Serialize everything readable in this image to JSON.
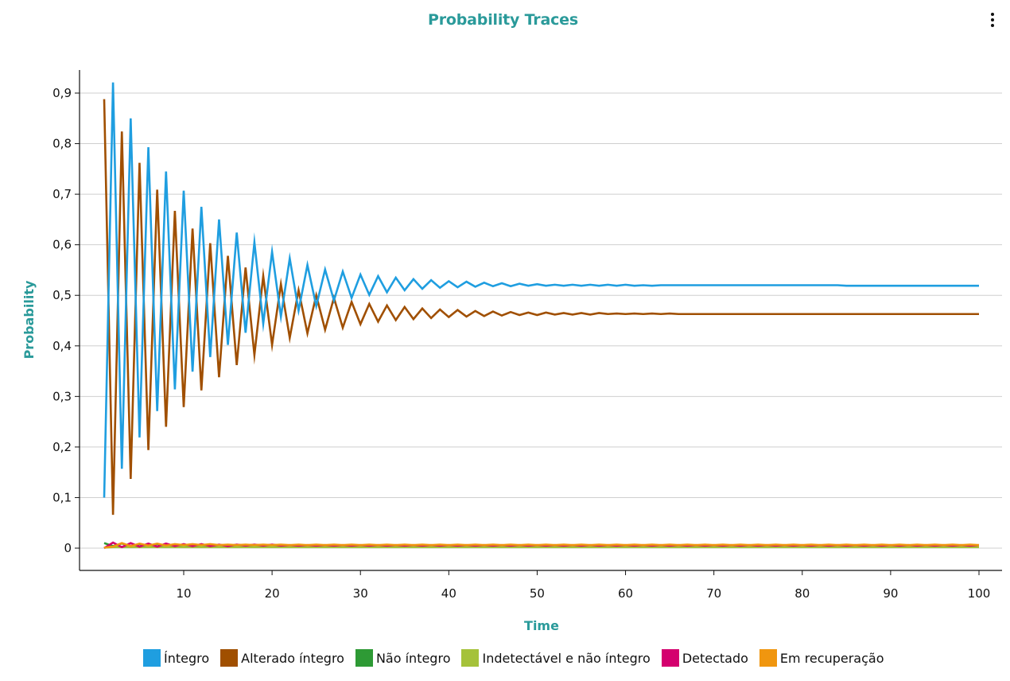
{
  "menu_icon": "more-vertical-icon",
  "accent_color": "#2a9a9a",
  "chart_data": {
    "type": "line",
    "title": "Probability Traces",
    "xlabel": "Time",
    "ylabel": "Probability",
    "xlim": [
      1,
      100
    ],
    "ylim": [
      0,
      0.9
    ],
    "xticks": [
      "10",
      "20",
      "30",
      "40",
      "50",
      "60",
      "70",
      "80",
      "90",
      "100"
    ],
    "yticks": [
      "0",
      "0,1",
      "0,2",
      "0,3",
      "0,4",
      "0,5",
      "0,6",
      "0,7",
      "0,8",
      "0,9"
    ],
    "grid": "horizontal",
    "legend_position": "bottom",
    "series": [
      {
        "name": "Íntegro",
        "color": "#1f9ee0",
        "values": [
          0.1,
          0.921,
          0.157,
          0.85,
          0.219,
          0.793,
          0.271,
          0.745,
          0.314,
          0.707,
          0.349,
          0.675,
          0.378,
          0.65,
          0.402,
          0.624,
          0.426,
          0.605,
          0.444,
          0.586,
          0.458,
          0.573,
          0.47,
          0.56,
          0.479,
          0.551,
          0.49,
          0.547,
          0.495,
          0.541,
          0.501,
          0.538,
          0.506,
          0.535,
          0.51,
          0.532,
          0.513,
          0.53,
          0.515,
          0.528,
          0.516,
          0.527,
          0.517,
          0.525,
          0.518,
          0.524,
          0.518,
          0.523,
          0.519,
          0.522,
          0.519,
          0.521,
          0.519,
          0.521,
          0.519,
          0.521,
          0.519,
          0.521,
          0.519,
          0.521,
          0.519,
          0.52,
          0.519,
          0.52,
          0.52,
          0.52,
          0.52,
          0.52,
          0.52,
          0.52,
          0.52,
          0.52,
          0.52,
          0.52,
          0.52,
          0.52,
          0.52,
          0.52,
          0.52,
          0.52,
          0.52,
          0.52,
          0.52,
          0.52,
          0.519,
          0.519,
          0.519,
          0.519,
          0.519,
          0.519,
          0.519,
          0.519,
          0.519,
          0.519,
          0.519,
          0.519,
          0.519,
          0.519,
          0.519,
          0.519
        ]
      },
      {
        "name": "Alterado íntegro",
        "color": "#a04f00",
        "values": [
          0.888,
          0.066,
          0.824,
          0.137,
          0.762,
          0.194,
          0.709,
          0.24,
          0.667,
          0.279,
          0.632,
          0.312,
          0.603,
          0.338,
          0.578,
          0.362,
          0.555,
          0.382,
          0.538,
          0.402,
          0.522,
          0.416,
          0.51,
          0.425,
          0.5,
          0.432,
          0.495,
          0.436,
          0.487,
          0.443,
          0.483,
          0.448,
          0.48,
          0.451,
          0.477,
          0.453,
          0.474,
          0.455,
          0.472,
          0.457,
          0.471,
          0.458,
          0.469,
          0.459,
          0.468,
          0.46,
          0.467,
          0.461,
          0.466,
          0.461,
          0.466,
          0.462,
          0.465,
          0.462,
          0.465,
          0.462,
          0.465,
          0.463,
          0.464,
          0.463,
          0.464,
          0.463,
          0.464,
          0.463,
          0.464,
          0.463,
          0.463,
          0.463,
          0.463,
          0.463,
          0.463,
          0.463,
          0.463,
          0.463,
          0.463,
          0.463,
          0.463,
          0.463,
          0.463,
          0.463,
          0.463,
          0.463,
          0.463,
          0.463,
          0.463,
          0.463,
          0.463,
          0.463,
          0.463,
          0.463,
          0.463,
          0.463,
          0.463,
          0.463,
          0.463,
          0.463,
          0.463,
          0.463,
          0.463,
          0.463
        ]
      },
      {
        "name": "Não íntegro",
        "color": "#2e9a35",
        "values": [
          0.01,
          0.004,
          0.009,
          0.004,
          0.008,
          0.004,
          0.008,
          0.004,
          0.007,
          0.004,
          0.007,
          0.004,
          0.006,
          0.004,
          0.006,
          0.004,
          0.006,
          0.004,
          0.005,
          0.004,
          0.005,
          0.004,
          0.005,
          0.004,
          0.005,
          0.004,
          0.005,
          0.004,
          0.005,
          0.004,
          0.005,
          0.004,
          0.004,
          0.004,
          0.004,
          0.004,
          0.004,
          0.004,
          0.004,
          0.004,
          0.004,
          0.004,
          0.004,
          0.004,
          0.004,
          0.004,
          0.004,
          0.004,
          0.004,
          0.004,
          0.004,
          0.004,
          0.004,
          0.004,
          0.004,
          0.004,
          0.004,
          0.004,
          0.004,
          0.004,
          0.004,
          0.004,
          0.004,
          0.004,
          0.004,
          0.004,
          0.004,
          0.004,
          0.004,
          0.004,
          0.004,
          0.004,
          0.004,
          0.004,
          0.004,
          0.004,
          0.004,
          0.004,
          0.004,
          0.004,
          0.004,
          0.004,
          0.004,
          0.004,
          0.004,
          0.004,
          0.004,
          0.004,
          0.004,
          0.004,
          0.004,
          0.004,
          0.004,
          0.004,
          0.004,
          0.004,
          0.004,
          0.004,
          0.004,
          0.004
        ]
      },
      {
        "name": "Indetectável e não íntegro",
        "color": "#a5c23a",
        "values": [
          0.001,
          0.002,
          0.002,
          0.002,
          0.002,
          0.002,
          0.002,
          0.002,
          0.002,
          0.002,
          0.002,
          0.002,
          0.002,
          0.002,
          0.002,
          0.002,
          0.002,
          0.002,
          0.002,
          0.002,
          0.002,
          0.002,
          0.002,
          0.002,
          0.002,
          0.002,
          0.002,
          0.002,
          0.002,
          0.002,
          0.002,
          0.002,
          0.002,
          0.002,
          0.002,
          0.002,
          0.002,
          0.002,
          0.002,
          0.002,
          0.002,
          0.002,
          0.002,
          0.002,
          0.002,
          0.002,
          0.002,
          0.002,
          0.002,
          0.002,
          0.002,
          0.002,
          0.002,
          0.002,
          0.002,
          0.002,
          0.002,
          0.002,
          0.002,
          0.002,
          0.002,
          0.002,
          0.002,
          0.002,
          0.002,
          0.002,
          0.002,
          0.002,
          0.002,
          0.002,
          0.002,
          0.002,
          0.002,
          0.002,
          0.002,
          0.002,
          0.002,
          0.002,
          0.002,
          0.002,
          0.002,
          0.002,
          0.002,
          0.002,
          0.002,
          0.002,
          0.002,
          0.002,
          0.002,
          0.002,
          0.002,
          0.002,
          0.002,
          0.002,
          0.002,
          0.002,
          0.002,
          0.002,
          0.002,
          0.002
        ]
      },
      {
        "name": "Detectado",
        "color": "#d4006e",
        "values": [
          0.0,
          0.011,
          0.002,
          0.01,
          0.003,
          0.009,
          0.003,
          0.009,
          0.004,
          0.008,
          0.004,
          0.008,
          0.004,
          0.007,
          0.004,
          0.007,
          0.005,
          0.007,
          0.005,
          0.007,
          0.005,
          0.006,
          0.005,
          0.006,
          0.005,
          0.006,
          0.005,
          0.006,
          0.005,
          0.006,
          0.005,
          0.006,
          0.005,
          0.006,
          0.005,
          0.006,
          0.005,
          0.006,
          0.005,
          0.006,
          0.005,
          0.006,
          0.005,
          0.006,
          0.005,
          0.006,
          0.005,
          0.006,
          0.005,
          0.006,
          0.005,
          0.006,
          0.005,
          0.006,
          0.005,
          0.006,
          0.005,
          0.006,
          0.005,
          0.006,
          0.005,
          0.006,
          0.005,
          0.006,
          0.005,
          0.006,
          0.005,
          0.006,
          0.005,
          0.006,
          0.005,
          0.006,
          0.005,
          0.006,
          0.005,
          0.006,
          0.005,
          0.006,
          0.005,
          0.006,
          0.005,
          0.006,
          0.005,
          0.006,
          0.005,
          0.006,
          0.005,
          0.006,
          0.005,
          0.006,
          0.005,
          0.006,
          0.005,
          0.006,
          0.005,
          0.006,
          0.005,
          0.006,
          0.005,
          0.006
        ]
      },
      {
        "name": "Em recuperação",
        "color": "#f0960f",
        "values": [
          0.001,
          0.003,
          0.01,
          0.004,
          0.009,
          0.005,
          0.009,
          0.005,
          0.008,
          0.006,
          0.008,
          0.006,
          0.008,
          0.006,
          0.007,
          0.006,
          0.007,
          0.006,
          0.007,
          0.006,
          0.007,
          0.006,
          0.007,
          0.006,
          0.007,
          0.006,
          0.007,
          0.006,
          0.007,
          0.006,
          0.007,
          0.006,
          0.007,
          0.006,
          0.007,
          0.006,
          0.007,
          0.006,
          0.007,
          0.006,
          0.007,
          0.006,
          0.007,
          0.006,
          0.007,
          0.006,
          0.007,
          0.006,
          0.007,
          0.006,
          0.007,
          0.006,
          0.007,
          0.006,
          0.007,
          0.006,
          0.007,
          0.006,
          0.007,
          0.006,
          0.007,
          0.006,
          0.007,
          0.006,
          0.007,
          0.006,
          0.007,
          0.006,
          0.007,
          0.006,
          0.007,
          0.006,
          0.007,
          0.006,
          0.007,
          0.006,
          0.007,
          0.006,
          0.007,
          0.006,
          0.007,
          0.006,
          0.007,
          0.006,
          0.007,
          0.006,
          0.007,
          0.006,
          0.007,
          0.006,
          0.007,
          0.006,
          0.007,
          0.006,
          0.007,
          0.006,
          0.007,
          0.006,
          0.007,
          0.006
        ]
      }
    ]
  }
}
